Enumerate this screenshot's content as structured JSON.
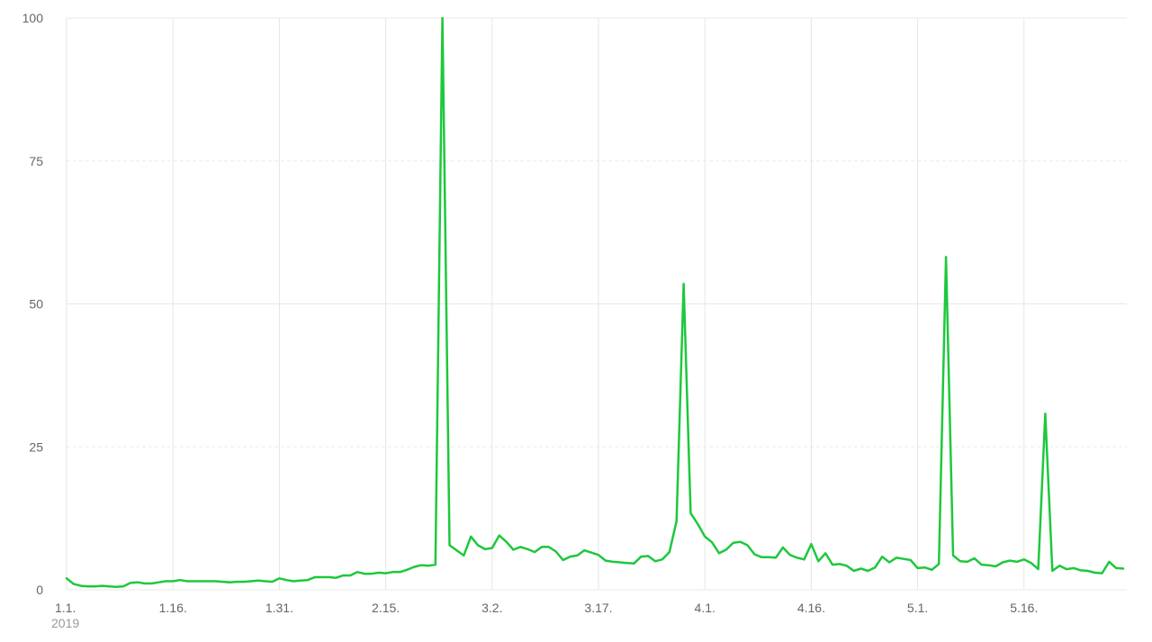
{
  "chart_data": {
    "type": "line",
    "title": "",
    "xlabel": "",
    "ylabel": "",
    "ylim": [
      0,
      100
    ],
    "y_ticks": [
      "0",
      "25",
      "50",
      "75",
      "100"
    ],
    "x_ticks": [
      "1.1.",
      "1.16.",
      "1.31.",
      "2.15.",
      "3.2.",
      "3.17.",
      "4.1.",
      "4.16.",
      "5.1.",
      "5.16."
    ],
    "x_year_label": "2019",
    "line_color": "#1ec83c",
    "grid": true,
    "series": [
      {
        "values": [
          2,
          1,
          0.7,
          0.6,
          0.6,
          0.7,
          0.6,
          0.5,
          0.6,
          1.2,
          1.3,
          1.1,
          1.1,
          1.3,
          1.5,
          1.5,
          1.7,
          1.5,
          1.5,
          1.5,
          1.5,
          1.5,
          1.4,
          1.3,
          1.4,
          1.4,
          1.5,
          1.6,
          1.5,
          1.4,
          2,
          1.7,
          1.5,
          1.6,
          1.7,
          2.2,
          2.2,
          2.2,
          2.1,
          2.5,
          2.5,
          3.1,
          2.8,
          2.8,
          3,
          2.9,
          3.1,
          3.1,
          3.5,
          4,
          4.3,
          4.2,
          4.4,
          100,
          7.8,
          6.9,
          6,
          9.3,
          7.8,
          7.1,
          7.3,
          9.5,
          8.4,
          7,
          7.5,
          7.1,
          6.6,
          7.5,
          7.5,
          6.7,
          5.2,
          5.8,
          6,
          6.9,
          6.5,
          6.1,
          5.1,
          4.9,
          4.8,
          4.7,
          4.6,
          5.8,
          5.9,
          5,
          5.3,
          6.6,
          12,
          53.5,
          13.4,
          11.5,
          9.3,
          8.3,
          6.4,
          7,
          8.2,
          8.4,
          7.8,
          6.2,
          5.7,
          5.7,
          5.6,
          7.4,
          6.1,
          5.6,
          5.3,
          8,
          5,
          6.4,
          4.4,
          4.5,
          4.2,
          3.3,
          3.7,
          3.3,
          3.9,
          5.8,
          4.8,
          5.6,
          5.4,
          5.2,
          3.8,
          3.9,
          3.5,
          4.5,
          58.2,
          6,
          5,
          4.9,
          5.5,
          4.4,
          4.3,
          4.1,
          4.8,
          5.1,
          4.9,
          5.3,
          4.7,
          3.6,
          30.8,
          3.3,
          4.2,
          3.6,
          3.8,
          3.4,
          3.3,
          3,
          2.9,
          4.9,
          3.8,
          3.7
        ]
      }
    ]
  }
}
